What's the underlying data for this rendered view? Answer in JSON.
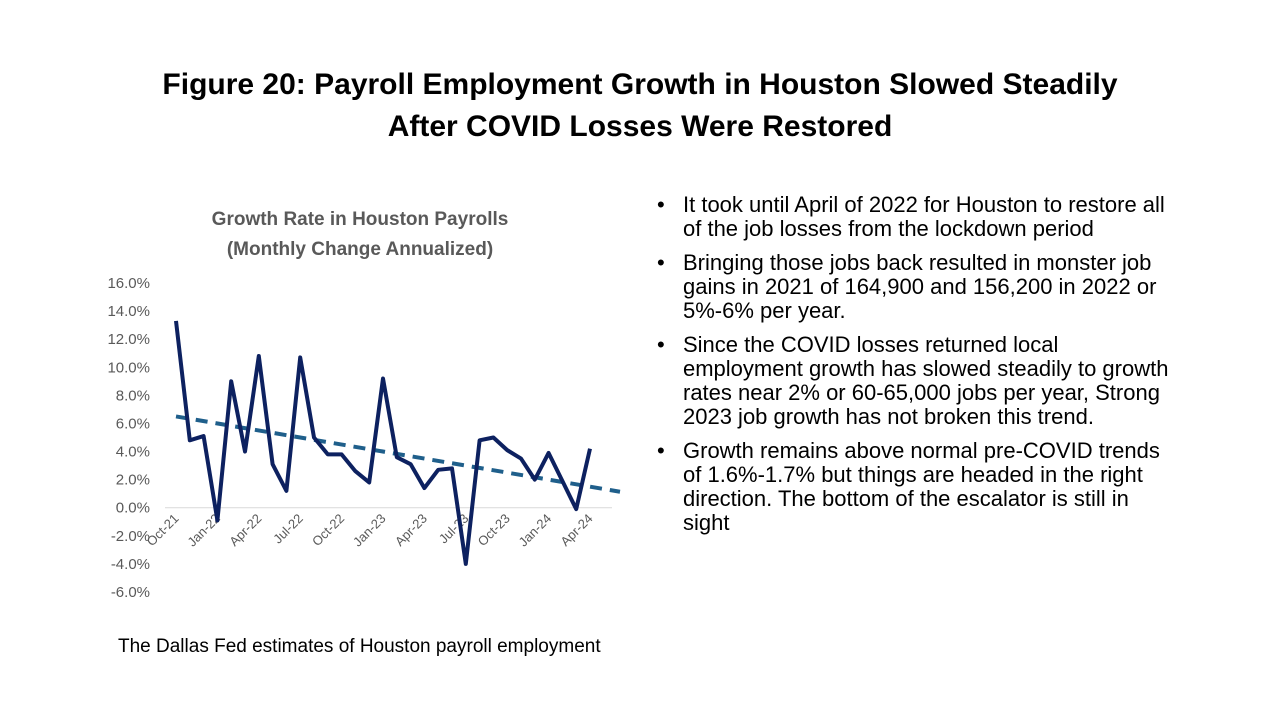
{
  "slide_title": [
    "Figure 20: Payroll Employment Growth in Houston Slowed Steadily",
    "After COVID Losses Were Restored"
  ],
  "chart_data": {
    "type": "line",
    "title": [
      "Growth Rate in Houston Payrolls",
      "(Monthly Change Annualized)"
    ],
    "categories": [
      "Oct-21",
      null,
      null,
      "Jan-22",
      null,
      null,
      "Apr-22",
      null,
      null,
      "Jul-22",
      null,
      null,
      "Oct-22",
      null,
      null,
      "Jan-23",
      null,
      null,
      "Apr-23",
      null,
      null,
      "Jul-23",
      null,
      null,
      "Oct-23",
      null,
      null,
      "Jan-24",
      null,
      null,
      "Apr-24"
    ],
    "series": [
      {
        "color": "#0d2160",
        "values": [
          13.3,
          4.8,
          5.1,
          -0.9,
          9.0,
          4.0,
          10.8,
          3.1,
          1.2,
          10.7,
          5.0,
          3.8,
          3.8,
          2.6,
          1.8,
          9.2,
          3.6,
          3.1,
          1.4,
          2.7,
          2.8,
          -4.0,
          4.8,
          5.0,
          4.1,
          3.5,
          2.0,
          3.9,
          1.9,
          -0.1,
          4.2
        ]
      }
    ],
    "trendline": {
      "color": "#1f5f8b",
      "style": "dashed",
      "values": [
        6.5,
        1.5
      ]
    },
    "ylim": [
      -6,
      16
    ],
    "yticks": [
      {
        "value": -6,
        "label": "-6.0%"
      },
      {
        "value": -4,
        "label": "-4.0%"
      },
      {
        "value": -2,
        "label": "-2.0%"
      },
      {
        "value": 0,
        "label": "0.0%"
      },
      {
        "value": 2,
        "label": "2.0%"
      },
      {
        "value": 4,
        "label": "4.0%"
      },
      {
        "value": 6,
        "label": "6.0%"
      },
      {
        "value": 8,
        "label": "8.0%"
      },
      {
        "value": 10,
        "label": "10.0%"
      },
      {
        "value": 12,
        "label": "12.0%"
      },
      {
        "value": 14,
        "label": "14.0%"
      },
      {
        "value": 16,
        "label": "16.0%"
      }
    ],
    "grid": false
  },
  "bullets": [
    "It took until April of 2022 for Houston to restore all of the job losses from the lockdown period",
    "Bringing those jobs back resulted in monster job gains in 2021 of 164,900 and 156,200 in 2022 or 5%-6% per year.",
    "Since the COVID losses returned local employment growth has slowed steadily to growth rates near 2% or 60-65,000 jobs per year, Strong 2023 job growth has not broken this trend.",
    "Growth remains above normal pre-COVID trends of 1.6%-1.7% but things are headed in the right direction.  The bottom of the escalator is still in sight"
  ],
  "footnote": "The Dallas Fed estimates of Houston payroll employment"
}
